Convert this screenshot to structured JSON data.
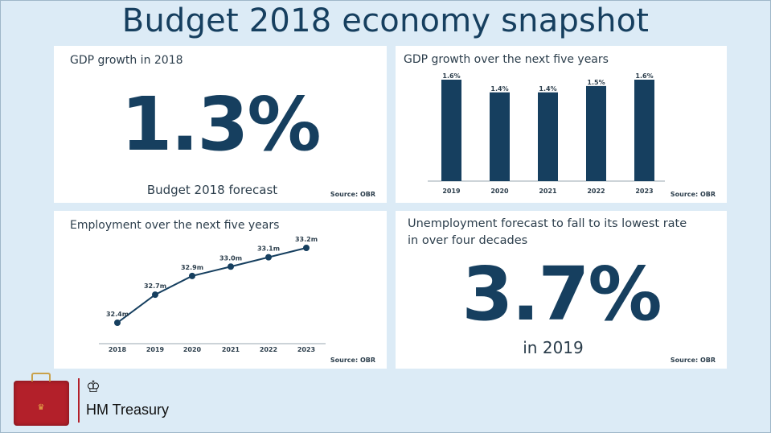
{
  "title": "Budget 2018 economy snapshot",
  "colors": {
    "navy": "#163f5f",
    "background": "#dcebf6",
    "panel": "#ffffff",
    "brand_red": "#b3202a"
  },
  "panels": {
    "gdp_2018": {
      "title": "GDP growth in 2018",
      "value": "1.3%",
      "subtitle": "Budget 2018 forecast",
      "source": "Source: OBR"
    },
    "gdp_five_years": {
      "title": "GDP growth over the next five years",
      "source": "Source: OBR"
    },
    "employment": {
      "title": "Employment over the next five years",
      "source": "Source: OBR"
    },
    "unemployment": {
      "title_line1": "Unemployment forecast to fall to its lowest rate",
      "title_line2": "in over four decades",
      "value": "3.7%",
      "subtitle": "in 2019",
      "source": "Source: OBR"
    }
  },
  "chart_data": [
    {
      "type": "bar",
      "title": "GDP growth over the next five years",
      "categories": [
        "2019",
        "2020",
        "2021",
        "2022",
        "2023"
      ],
      "values": [
        1.6,
        1.4,
        1.4,
        1.5,
        1.6
      ],
      "labels": [
        "1.6%",
        "1.4%",
        "1.4%",
        "1.5%",
        "1.6%"
      ],
      "unit": "%",
      "ylim": [
        0,
        1.6
      ],
      "grid": false,
      "xlabel": "",
      "ylabel": ""
    },
    {
      "type": "line",
      "title": "Employment over the next five years",
      "categories": [
        "2018",
        "2019",
        "2020",
        "2021",
        "2022",
        "2023"
      ],
      "values": [
        32.4,
        32.7,
        32.9,
        33.0,
        33.1,
        33.2
      ],
      "labels": [
        "32.4m",
        "32.7m",
        "32.9m",
        "33.0m",
        "33.1m",
        "33.2m"
      ],
      "unit": "million",
      "ylim": [
        32.4,
        33.2
      ],
      "grid": false,
      "xlabel": "",
      "ylabel": ""
    }
  ],
  "footer": {
    "brand": "HM Treasury",
    "icons": [
      "red-budget-box",
      "royal-coat-of-arms"
    ]
  }
}
